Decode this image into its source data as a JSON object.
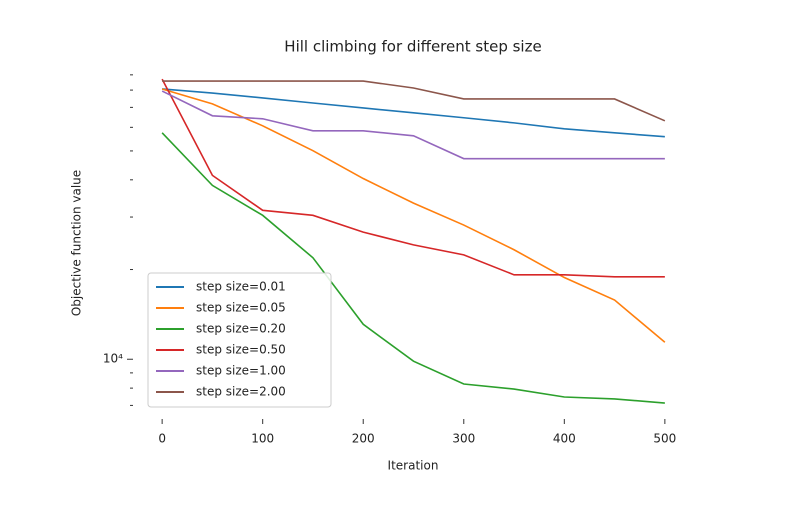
{
  "chart_data": {
    "type": "line",
    "title": "Hill climbing for different step size",
    "xlabel": "Iteration",
    "ylabel": "Objective function value",
    "x": [
      0,
      50,
      100,
      150,
      200,
      250,
      300,
      350,
      400,
      450,
      500
    ],
    "series": [
      {
        "name": "step size=0.01",
        "color": "#1f77b4",
        "values": [
          80700,
          78200,
          75300,
          72400,
          69700,
          67100,
          64600,
          62100,
          59300,
          57500,
          55800
        ]
      },
      {
        "name": "step size=0.05",
        "color": "#ff7f0e",
        "values": [
          80700,
          71900,
          60700,
          50100,
          40400,
          33400,
          28200,
          23300,
          18800,
          15800,
          11400
        ]
      },
      {
        "name": "step size=0.20",
        "color": "#2ca02c",
        "values": [
          57500,
          38300,
          30400,
          21900,
          13100,
          9850,
          8260,
          7940,
          7470,
          7360,
          7130
        ]
      },
      {
        "name": "step size=0.50",
        "color": "#d62728",
        "values": [
          87100,
          41400,
          31600,
          30400,
          26700,
          24200,
          22400,
          19200,
          19200,
          18900,
          18900
        ]
      },
      {
        "name": "step size=1.00",
        "color": "#9467bd",
        "values": [
          79400,
          65600,
          64100,
          58400,
          58400,
          56200,
          47100,
          47100,
          47100,
          47100,
          47100
        ]
      },
      {
        "name": "step size=2.00",
        "color": "#8c564b",
        "values": [
          85800,
          85800,
          85800,
          85800,
          85800,
          81300,
          74700,
          74700,
          74700,
          74700,
          63100
        ]
      }
    ],
    "xlim": [
      -25,
      525
    ],
    "xticks": [
      0,
      100,
      200,
      300,
      400,
      500
    ],
    "ylim": [
      6500,
      92000
    ],
    "log_y": true,
    "yticks": [
      {
        "value": 10000,
        "label": "10⁴"
      }
    ],
    "yminorticks": [
      7000,
      8000,
      9000,
      20000,
      30000,
      40000,
      50000,
      60000,
      70000,
      80000,
      90000
    ],
    "legend": "lower left"
  }
}
